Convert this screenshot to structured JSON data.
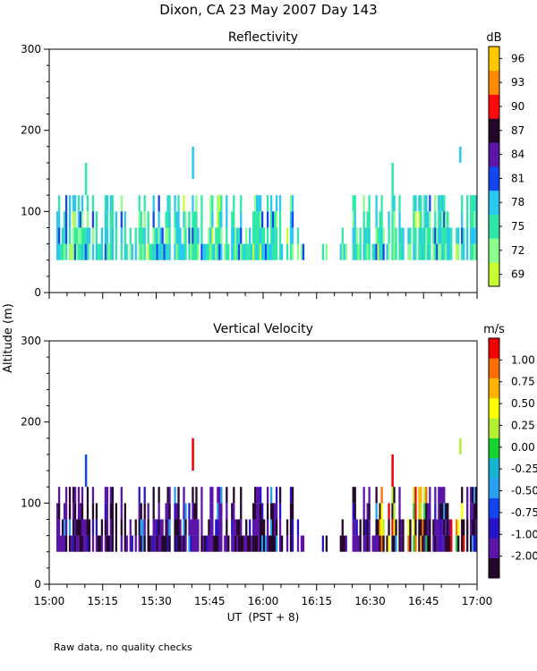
{
  "page_title": "Dixon, CA 23 May 2007  Day 143",
  "footnote": "Raw data, no quality checks",
  "colors": {
    "reflectivity_scale": [
      "#c8ff32",
      "#8cff8c",
      "#2ee8a8",
      "#28c8f0",
      "#1446f0",
      "#5a14a8",
      "#24082a",
      "#ff0a0a",
      "#ff8c00",
      "#ffc800"
    ],
    "velocity_scale": [
      "#24082a",
      "#5a14a8",
      "#2814c8",
      "#1446f0",
      "#28a0f0",
      "#14b4d2",
      "#14d232",
      "#b4f032",
      "#ffff00",
      "#ffb400",
      "#ff6e00",
      "#f00000"
    ]
  },
  "chart_data": [
    {
      "type": "heatmap",
      "title": "Reflectivity",
      "xlabel": "UT  (PST + 8)",
      "ylabel": "Altitude (m)",
      "xlim_minutes": [
        0,
        120
      ],
      "ylim": [
        0,
        300
      ],
      "x_ticks": [
        "15:00",
        "15:15",
        "15:30",
        "15:45",
        "16:00",
        "16:15",
        "16:30",
        "16:45",
        "17:00"
      ],
      "y_ticks": [
        0,
        100,
        200,
        300
      ],
      "colorbar": {
        "unit": "dB",
        "labels": [
          "69",
          "72",
          "75",
          "78",
          "81",
          "84",
          "87",
          "90",
          "93",
          "96"
        ],
        "min": 67.5,
        "max": 97.5
      },
      "data_extent": {
        "altitude_range_m": [
          40,
          120
        ],
        "typical_top_m": 100,
        "sparse_gaps_ut": [
          [
            "16:05",
            "16:25"
          ]
        ],
        "isolated_returns": [
          {
            "time": "15:40",
            "altitude_m": [
              140,
              180
            ],
            "value_db": 78
          },
          {
            "time": "16:55",
            "altitude_m": [
              160,
              180
            ],
            "value_db": 78
          },
          {
            "time": "15:10",
            "altitude_m": [
              120,
              160
            ],
            "value_db": 75
          },
          {
            "time": "16:36",
            "altitude_m": [
              120,
              160
            ],
            "value_db": 75
          }
        ]
      }
    },
    {
      "type": "heatmap",
      "title": "Vertical Velocity",
      "xlabel": "UT  (PST + 8)",
      "ylabel": "Altitude (m)",
      "xlim_minutes": [
        0,
        120
      ],
      "ylim": [
        0,
        300
      ],
      "x_ticks": [
        "15:00",
        "15:15",
        "15:30",
        "15:45",
        "16:00",
        "16:15",
        "16:30",
        "16:45",
        "17:00"
      ],
      "y_ticks": [
        0,
        100,
        200,
        300
      ],
      "colorbar": {
        "unit": "m/s",
        "labels": [
          "-2.00",
          "-1.00",
          "-0.75",
          "-0.50",
          "-0.25",
          "0.00",
          "0.25",
          "0.50",
          "0.75",
          "1.00"
        ]
      },
      "data_extent": {
        "altitude_range_m": [
          40,
          120
        ],
        "dominant_value_ms": -1.0,
        "updraft_regions_ut": [
          "16:33",
          "16:42",
          "16:55"
        ],
        "isolated_returns": [
          {
            "time": "15:40",
            "altitude_m": [
              140,
              180
            ],
            "value_ms": 1.0
          },
          {
            "time": "16:55",
            "altitude_m": [
              160,
              180
            ],
            "value_ms": 0.25
          },
          {
            "time": "16:36",
            "altitude_m": [
              120,
              160
            ],
            "value_ms": 1.0
          },
          {
            "time": "15:10",
            "altitude_m": [
              120,
              160
            ],
            "value_ms": -0.5
          }
        ]
      }
    }
  ]
}
